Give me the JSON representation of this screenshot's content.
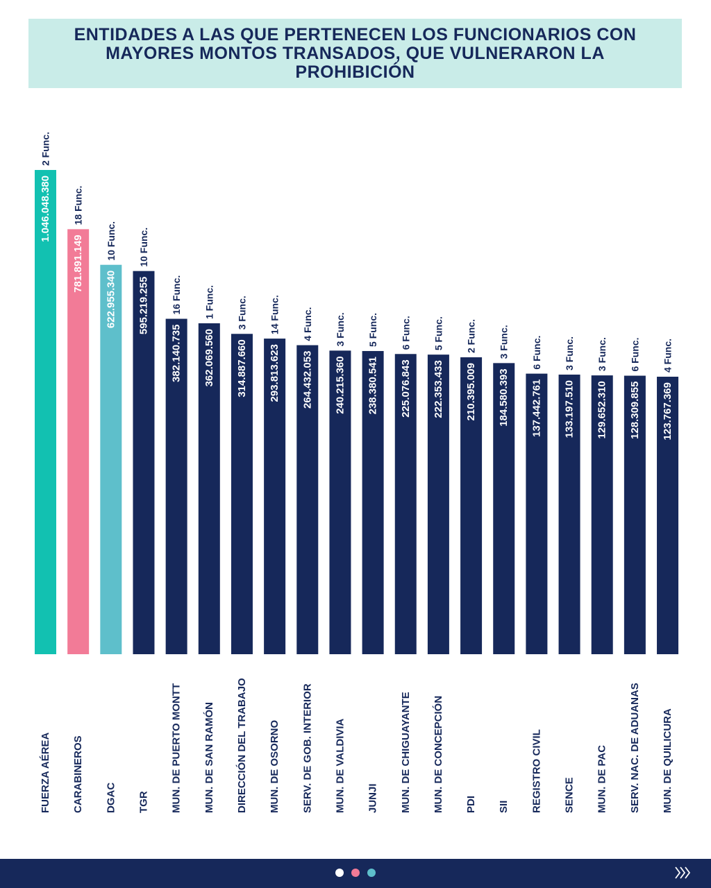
{
  "chart_data": {
    "type": "bar",
    "title": "ENTIDADES A LAS QUE PERTENECEN LOS FUNCIONARIOS CON MAYORES MONTOS TRANSADOS, QUE VULNERARON LA PROHIBICIÓN",
    "categories": [
      "FUERZA AÉREA",
      "CARABINEROS",
      "DGAC",
      "TGR",
      "MUN. DE PUERTO MONTT",
      "MUN. DE SAN RAMÓN",
      "DIRECCIÓN DEL TRABAJO",
      "MUN. DE OSORNO",
      "SERV. DE GOB. INTERIOR",
      "MUN. DE VALDIVIA",
      "JUNJI",
      "MUN. DE CHIGUAYANTE",
      "MUN. DE CONCEPCIÓN",
      "PDI",
      "SII",
      "REGISTRO CIVIL",
      "SENCE",
      "MUN. DE PAC",
      "SERV. NAC. DE ADUANAS",
      "MUN. DE QUILICURA"
    ],
    "values": [
      1046048380,
      781891149,
      622955340,
      595219255,
      382140735,
      362069560,
      314887660,
      293813623,
      264432053,
      240215360,
      238380541,
      225076843,
      222353433,
      210395009,
      184580393,
      137442761,
      133197510,
      129652310,
      128309855,
      123767369
    ],
    "value_labels": [
      "1.046.048.380",
      "781.891.149",
      "622.955.340",
      "595.219.255",
      "382.140.735",
      "362.069.560",
      "314.887.660",
      "293.813.623",
      "264.432.053",
      "240.215.360",
      "238.380.541",
      "225.076.843",
      "222.353.433",
      "210.395.009",
      "184.580.393",
      "137.442.761",
      "133.197.510",
      "129.652.310",
      "128.309.855",
      "123.767.369"
    ],
    "bar_notes": [
      "2 Func.",
      "18 Func.",
      "10 Func.",
      "10 Func.",
      "16 Func.",
      "1 Func.",
      "3 Func.",
      "14 Func.",
      "4 Func.",
      "3 Func.",
      "5 Func.",
      "6 Func.",
      "5 Func.",
      "2 Func.",
      "3 Func.",
      "6 Func.",
      "3 Func.",
      "3 Func.",
      "6 Func.",
      "4 Func."
    ],
    "colors": [
      "#12c1b1",
      "#f27b97",
      "#5ebfcb",
      "#16285a",
      "#16285a",
      "#16285a",
      "#16285a",
      "#16285a",
      "#16285a",
      "#16285a",
      "#16285a",
      "#16285a",
      "#16285a",
      "#16285a",
      "#16285a",
      "#16285a",
      "#16285a",
      "#16285a",
      "#16285a",
      "#16285a"
    ]
  }
}
